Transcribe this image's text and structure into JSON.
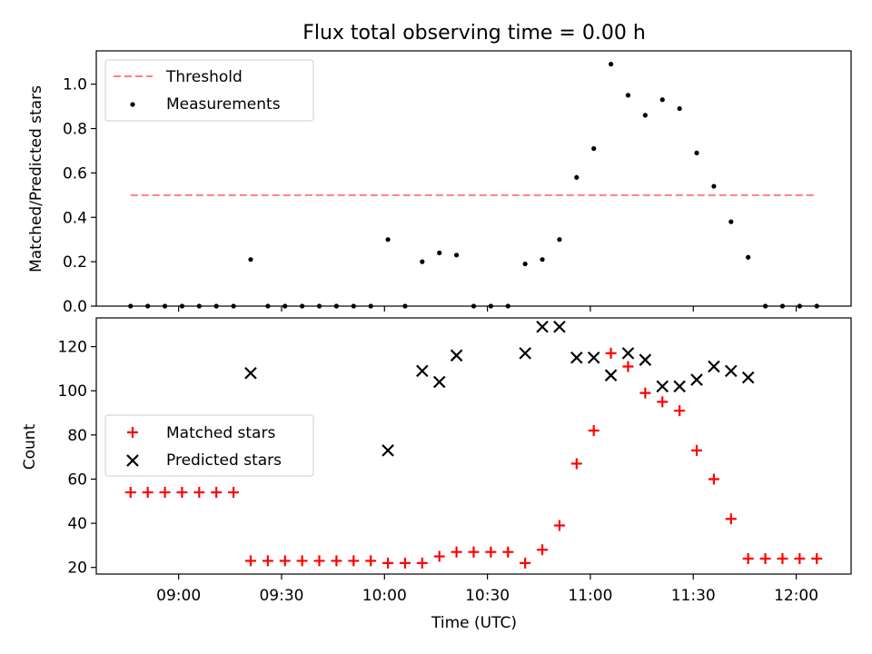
{
  "colors": {
    "threshold": "#ff7f7f",
    "measurement": "#000000",
    "matched": "#ff0000",
    "predicted": "#000000"
  },
  "chart_data": [
    {
      "type": "scatter",
      "title": "Flux total observing time = 0.00 h",
      "xlabel": "",
      "ylabel": "Matched/Predicted stars",
      "x_unit": "time",
      "xlim": [
        "08:36",
        "12:16"
      ],
      "ylim": [
        0,
        1.15
      ],
      "yticks": [
        0.0,
        0.2,
        0.4,
        0.6,
        0.8,
        1.0
      ],
      "ytick_labels": [
        "0.0",
        "0.2",
        "0.4",
        "0.6",
        "0.8",
        "1.0"
      ],
      "legend": {
        "placement": "upper-left",
        "threshold_label": "Threshold",
        "measurements_label": "Measurements"
      },
      "threshold": {
        "name": "Threshold",
        "value": 0.5,
        "x_range": [
          "08:46",
          "12:06"
        ],
        "style": "dashed"
      },
      "x": [
        "08:46",
        "08:51",
        "08:56",
        "09:01",
        "09:06",
        "09:11",
        "09:16",
        "09:21",
        "09:26",
        "09:31",
        "09:36",
        "09:41",
        "09:46",
        "09:51",
        "09:56",
        "10:01",
        "10:06",
        "10:11",
        "10:16",
        "10:21",
        "10:26",
        "10:31",
        "10:36",
        "10:41",
        "10:46",
        "10:51",
        "10:56",
        "11:01",
        "11:06",
        "11:11",
        "11:16",
        "11:21",
        "11:26",
        "11:31",
        "11:36",
        "11:41",
        "11:46",
        "11:51",
        "11:56",
        "12:01",
        "12:06"
      ],
      "series": [
        {
          "name": "Measurements",
          "marker": "dot",
          "values": [
            0,
            0,
            0,
            0,
            0,
            0,
            0,
            0.21,
            0,
            0,
            0,
            0,
            0,
            0,
            0,
            0.3,
            0,
            0.2,
            0.24,
            0.23,
            0,
            0,
            0,
            0.19,
            0.21,
            0.3,
            0.58,
            0.71,
            1.09,
            0.95,
            0.86,
            0.93,
            0.89,
            0.69,
            0.54,
            0.38,
            0.22,
            0,
            0,
            0,
            0
          ]
        }
      ]
    },
    {
      "type": "scatter",
      "title": "",
      "xlabel": "Time (UTC)",
      "ylabel": "Count",
      "x_unit": "time",
      "xlim": [
        "08:36",
        "12:16"
      ],
      "ylim": [
        17,
        133
      ],
      "yticks": [
        20,
        40,
        60,
        80,
        100,
        120
      ],
      "ytick_labels": [
        "20",
        "40",
        "60",
        "80",
        "100",
        "120"
      ],
      "xticks": [
        "09:00",
        "09:30",
        "10:00",
        "10:30",
        "11:00",
        "11:30",
        "12:00"
      ],
      "xtick_labels": [
        "09:00",
        "09:30",
        "10:00",
        "10:30",
        "11:00",
        "11:30",
        "12:00"
      ],
      "legend": {
        "placement": "center-left",
        "matched_label": "Matched stars",
        "predicted_label": "Predicted stars"
      },
      "series": [
        {
          "name": "Matched stars",
          "marker": "plus",
          "x": [
            "08:46",
            "08:51",
            "08:56",
            "09:01",
            "09:06",
            "09:11",
            "09:16",
            "09:21",
            "09:26",
            "09:31",
            "09:36",
            "09:41",
            "09:46",
            "09:51",
            "09:56",
            "10:01",
            "10:06",
            "10:11",
            "10:16",
            "10:21",
            "10:26",
            "10:31",
            "10:36",
            "10:41",
            "10:46",
            "10:51",
            "10:56",
            "11:01",
            "11:06",
            "11:11",
            "11:16",
            "11:21",
            "11:26",
            "11:31",
            "11:36",
            "11:41",
            "11:46",
            "11:51",
            "11:56",
            "12:01",
            "12:06"
          ],
          "values": [
            54,
            54,
            54,
            54,
            54,
            54,
            54,
            23,
            23,
            23,
            23,
            23,
            23,
            23,
            23,
            22,
            22,
            22,
            25,
            27,
            27,
            27,
            27,
            22,
            28,
            39,
            67,
            82,
            117,
            111,
            99,
            95,
            91,
            73,
            60,
            42,
            24,
            24,
            24,
            24,
            24
          ]
        },
        {
          "name": "Predicted stars",
          "marker": "x",
          "x": [
            "09:21",
            "10:01",
            "10:11",
            "10:16",
            "10:21",
            "10:41",
            "10:46",
            "10:51",
            "10:56",
            "11:01",
            "11:06",
            "11:11",
            "11:16",
            "11:21",
            "11:26",
            "11:31",
            "11:36",
            "11:41",
            "11:46"
          ],
          "values": [
            108,
            73,
            109,
            104,
            116,
            117,
            129,
            129,
            115,
            115,
            107,
            117,
            114,
            102,
            102,
            105,
            111,
            109,
            106
          ]
        }
      ]
    }
  ]
}
